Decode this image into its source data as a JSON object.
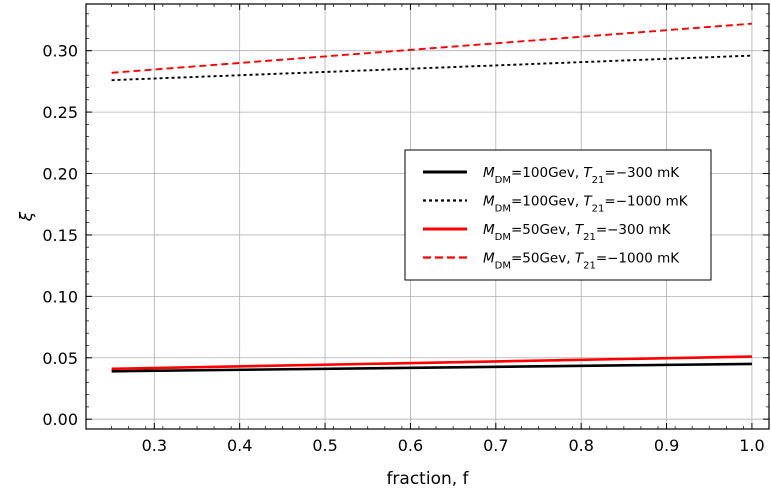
{
  "chart_data": {
    "type": "line",
    "xlabel": "fraction, f",
    "ylabel": "ξ",
    "xlim": [
      0.22,
      1.02
    ],
    "ylim": [
      -0.008,
      0.338
    ],
    "xticks": [
      "0.3",
      "0.4",
      "0.5",
      "0.6",
      "0.7",
      "0.8",
      "0.9",
      "1.0"
    ],
    "yticks": [
      "0.00",
      "0.05",
      "0.10",
      "0.15",
      "0.20",
      "0.25",
      "0.30"
    ],
    "grid": true,
    "legend_position": "right-center",
    "series": [
      {
        "name": "M_DM=100Gev, T_21=−300 mK",
        "legend": {
          "m_sub": "DM",
          "mass": "=100Gev, ",
          "t_sub": "21",
          "temp": "=−300 mK"
        },
        "color": "#000000",
        "style": "solid",
        "x": [
          0.25,
          1.0
        ],
        "y": [
          0.039,
          0.045
        ]
      },
      {
        "name": "M_DM=100Gev, T_21=−1000 mK",
        "legend": {
          "m_sub": "DM",
          "mass": "=100Gev, ",
          "t_sub": "21",
          "temp": "=−1000 mK"
        },
        "color": "#000000",
        "style": "dotted",
        "x": [
          0.25,
          1.0
        ],
        "y": [
          0.276,
          0.296
        ]
      },
      {
        "name": "M_DM=50Gev, T_21=−300 mK",
        "legend": {
          "m_sub": "DM",
          "mass": "=50Gev, ",
          "t_sub": "21",
          "temp": "=−300 mK"
        },
        "color": "#ff0000",
        "style": "solid",
        "x": [
          0.25,
          1.0
        ],
        "y": [
          0.041,
          0.051
        ]
      },
      {
        "name": "M_DM=50Gev, T_21=−1000 mK",
        "legend": {
          "m_sub": "DM",
          "mass": "=50Gev, ",
          "t_sub": "21",
          "temp": "=−1000 mK"
        },
        "color": "#ff0000",
        "style": "dashed",
        "x": [
          0.25,
          1.0
        ],
        "y": [
          0.282,
          0.322
        ]
      }
    ]
  }
}
